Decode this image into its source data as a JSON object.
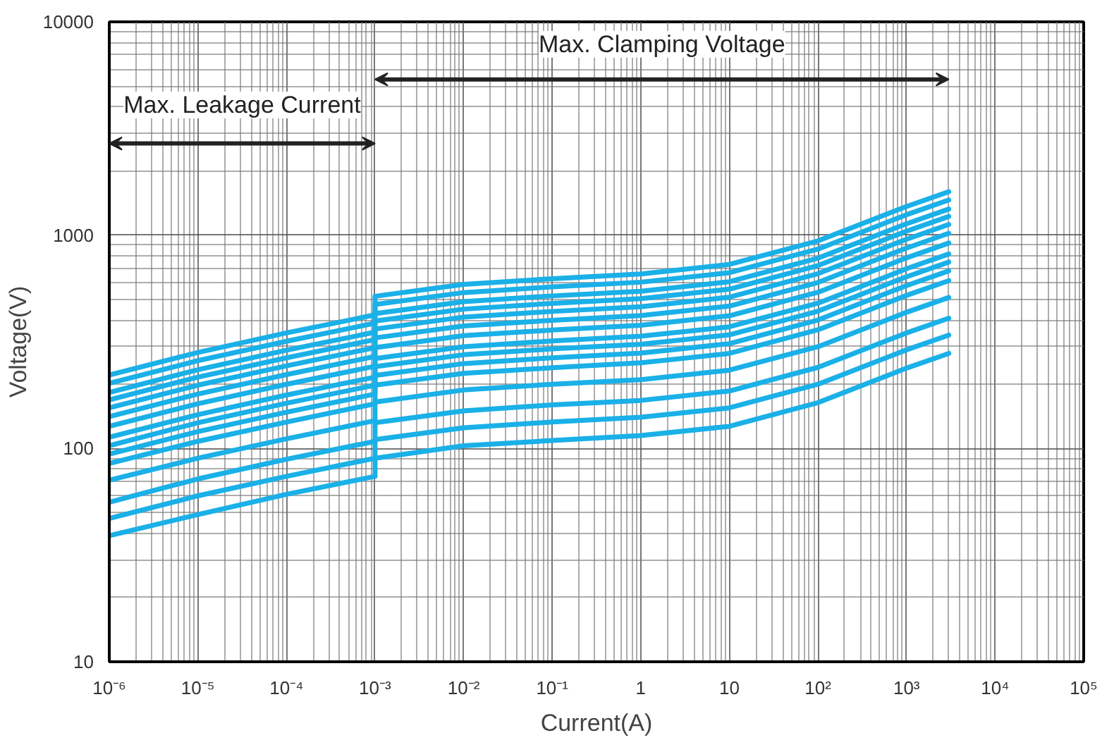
{
  "chart_data": {
    "type": "line",
    "xlabel": "Current(A)",
    "ylabel": "Voltage(V)",
    "log": "xy",
    "grid": true,
    "marker": "none",
    "line_style": "solid",
    "xlim": [
      1e-06,
      100000.0
    ],
    "ylim": [
      10,
      10000
    ],
    "xticks": [
      {
        "value": 1e-06,
        "label": "10⁻⁶"
      },
      {
        "value": 1e-05,
        "label": "10⁻⁵"
      },
      {
        "value": 0.0001,
        "label": "10⁻⁴"
      },
      {
        "value": 0.001,
        "label": "10⁻³"
      },
      {
        "value": 0.01,
        "label": "10⁻²"
      },
      {
        "value": 0.1,
        "label": "10⁻¹"
      },
      1,
      10,
      {
        "value": 100,
        "label": "10²"
      },
      {
        "value": 1000,
        "label": "10³"
      },
      {
        "value": 10000,
        "label": "10⁴"
      },
      {
        "value": 100000,
        "label": "10⁵"
      }
    ],
    "yticks": [
      10,
      100,
      1000,
      10000
    ],
    "annotations": [
      "Max. Leakage Current",
      "Max. Clamping Voltage"
    ],
    "x": [
      1e-06,
      1e-05,
      0.0001,
      0.001,
      0.001,
      0.01,
      0.1,
      1,
      10,
      100,
      1000,
      3000
    ],
    "series": [
      {
        "color": "#1ab0e8",
        "values": [
          221,
          282,
          348,
          423,
          517,
          588,
          625,
          658,
          729,
          940,
          1363,
          1598
        ]
      },
      {
        "color": "#1ab0e8",
        "values": [
          202,
          258,
          318,
          387,
          473,
          538,
          572,
          602,
          667,
          860,
          1247,
          1462
        ]
      },
      {
        "color": "#1ab0e8",
        "values": [
          183,
          234,
          289,
          351,
          429,
          488,
          519,
          546,
          605,
          780,
          1131,
          1326
        ]
      },
      {
        "color": "#1ab0e8",
        "values": [
          169,
          216,
          266,
          324,
          396,
          450,
          479,
          504,
          558,
          720,
          1044,
          1224
        ]
      },
      {
        "color": "#1ab0e8",
        "values": [
          155,
          198,
          244,
          297,
          363,
          413,
          439,
          462,
          512,
          660,
          957,
          1122
        ]
      },
      {
        "color": "#1ab0e8",
        "values": [
          141,
          180,
          222,
          270,
          330,
          375,
          399,
          420,
          465,
          600,
          870,
          1020
        ]
      },
      {
        "color": "#1ab0e8",
        "values": [
          127,
          162,
          200,
          243,
          297,
          338,
          359,
          378,
          419,
          540,
          783,
          918
        ]
      },
      {
        "color": "#1ab0e8",
        "values": [
          113,
          144,
          178,
          216,
          264,
          300,
          319,
          336,
          372,
          480,
          696,
          816
        ]
      },
      {
        "color": "#1ab0e8",
        "values": [
          103,
          132,
          163,
          198,
          242,
          275,
          293,
          308,
          341,
          440,
          638,
          748
        ]
      },
      {
        "color": "#1ab0e8",
        "values": [
          94,
          120,
          148,
          180,
          220,
          250,
          266,
          280,
          310,
          400,
          580,
          680
        ]
      },
      {
        "color": "#1ab0e8",
        "values": [
          85,
          108,
          133,
          162,
          198,
          225,
          239,
          252,
          279,
          360,
          522,
          612
        ]
      },
      {
        "color": "#1ab0e8",
        "values": [
          71,
          90,
          111,
          135,
          165,
          188,
          200,
          210,
          233,
          300,
          435,
          510
        ]
      },
      {
        "color": "#1ab0e8",
        "values": [
          56,
          72,
          89,
          108,
          132,
          150,
          160,
          168,
          186,
          240,
          348,
          408
        ]
      },
      {
        "color": "#1ab0e8",
        "values": [
          47,
          60,
          74,
          90,
          110,
          125,
          133,
          140,
          155,
          200,
          290,
          340
        ]
      },
      {
        "color": "#1ab0e8",
        "values": [
          39,
          49,
          61,
          74,
          90,
          103,
          109,
          115,
          127,
          164,
          238,
          279
        ]
      }
    ]
  }
}
